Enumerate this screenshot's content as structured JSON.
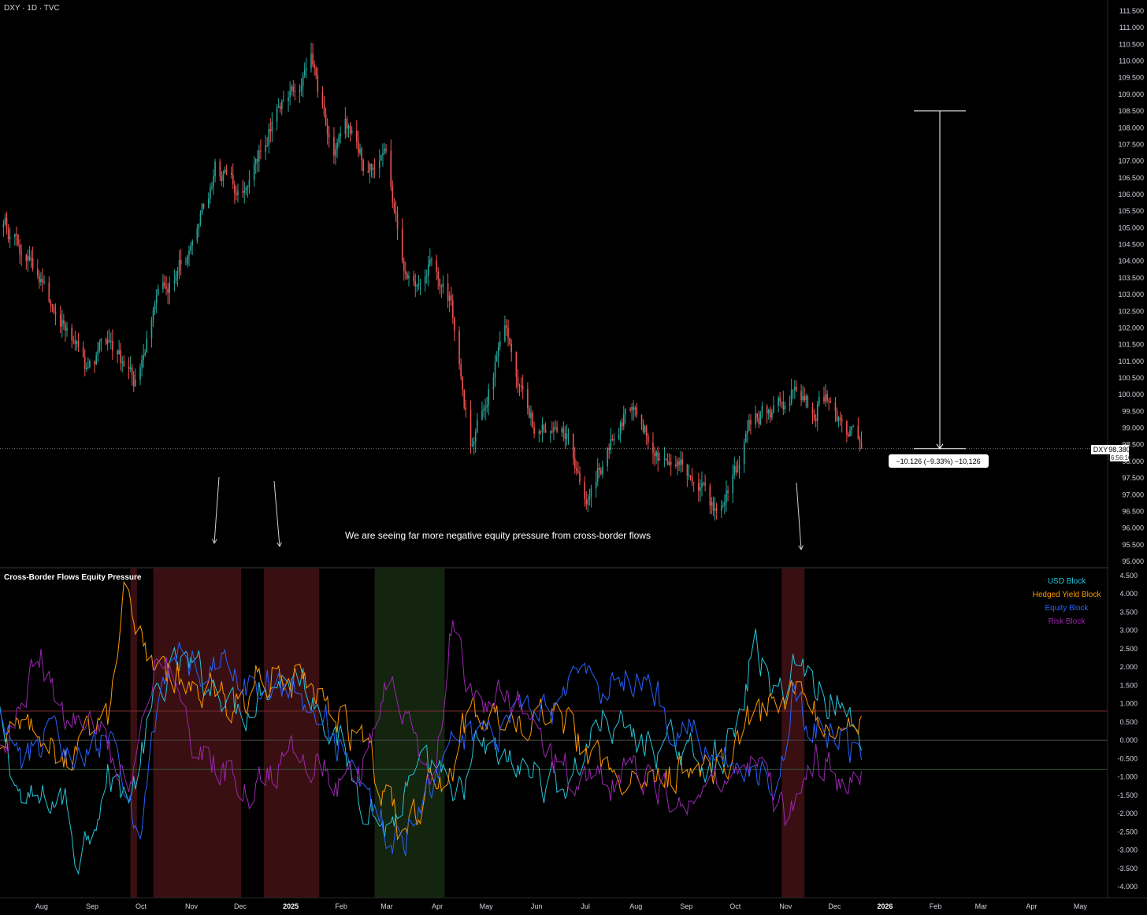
{
  "header": {
    "symbol_title": "DXY · 1D · TVC"
  },
  "main_pane": {
    "y_ticks": [
      "111.500",
      "111.000",
      "110.500",
      "110.000",
      "109.500",
      "109.000",
      "108.500",
      "108.000",
      "107.500",
      "107.000",
      "106.500",
      "106.000",
      "105.500",
      "105.000",
      "104.500",
      "104.000",
      "103.500",
      "103.000",
      "102.500",
      "102.000",
      "101.500",
      "101.000",
      "100.500",
      "100.000",
      "99.500",
      "99.000",
      "98.500",
      "98.000",
      "97.500",
      "97.000",
      "96.500",
      "96.000",
      "95.500",
      "95.000"
    ],
    "y_tick_values": [
      111.5,
      111.0,
      110.5,
      110.0,
      109.5,
      109.0,
      108.5,
      108.0,
      107.5,
      107.0,
      106.5,
      106.0,
      105.5,
      105.0,
      104.5,
      104.0,
      103.5,
      103.0,
      102.5,
      102.0,
      101.5,
      101.0,
      100.5,
      100.0,
      99.5,
      99.0,
      98.5,
      98.0,
      97.5,
      97.0,
      96.5,
      96.0,
      95.5,
      95.0
    ],
    "y_range": [
      95.0,
      111.5
    ],
    "price_label": {
      "symbol": "DXY",
      "price": "98.380",
      "countdown": "16:56:10",
      "value": 98.38
    },
    "measure": {
      "label": "−10.126 (−9.33%) −10,126",
      "from": 108.506,
      "to": 98.38
    },
    "annotation": "We are seeing far more negative equity pressure from cross-border flows",
    "up_color": "#26a69a",
    "down_color": "#ef5350"
  },
  "indicator_pane": {
    "title": "Cross-Border Flows Equity Pressure",
    "y_ticks": [
      "4.500",
      "4.000",
      "3.500",
      "3.000",
      "2.500",
      "2.000",
      "1.500",
      "1.000",
      "0.500",
      "0.000",
      "-0.500",
      "-1.000",
      "-1.500",
      "-2.000",
      "-2.500",
      "-3.000",
      "-3.500",
      "-4.000"
    ],
    "y_tick_values": [
      4.5,
      4.0,
      3.5,
      3.0,
      2.5,
      2.0,
      1.5,
      1.0,
      0.5,
      0.0,
      -0.5,
      -1.0,
      -1.5,
      -2.0,
      -2.5,
      -3.0,
      -3.5,
      -4.0
    ],
    "y_range": [
      -4.2,
      4.7
    ],
    "legend": [
      {
        "name": "USD Block",
        "color": "#26c6da"
      },
      {
        "name": "Hedged Yield Block",
        "color": "#ff9800"
      },
      {
        "name": "Equity Block",
        "color": "#2962ff"
      },
      {
        "name": "Risk Block",
        "color": "#9c27b0"
      }
    ],
    "threshold_levels": [
      0.8,
      0.0,
      -0.8
    ]
  },
  "x_axis": {
    "labels": [
      "Aug",
      "Sep",
      "Oct",
      "Nov",
      "Dec",
      "2025",
      "Feb",
      "Mar",
      "Apr",
      "May",
      "Jun",
      "Jul",
      "Aug",
      "Sep",
      "Oct",
      "Nov",
      "Dec",
      "2026",
      "Feb",
      "Mar",
      "Apr",
      "May"
    ],
    "bold": [
      "2025",
      "2026"
    ]
  },
  "chart_data": [
    {
      "type": "candlestick",
      "title": "DXY · 1D · TVC",
      "x_range": [
        "2024-07-01",
        "2025-12-31"
      ],
      "ylim": [
        95.0,
        111.5
      ],
      "keypoints": [
        [
          "2024-07-10",
          105.0
        ],
        [
          "2024-07-22",
          104.2
        ],
        [
          "2024-08-05",
          102.7
        ],
        [
          "2024-08-20",
          101.5
        ],
        [
          "2024-08-28",
          100.6
        ],
        [
          "2024-09-10",
          101.6
        ],
        [
          "2024-09-27",
          100.3
        ],
        [
          "2024-10-10",
          102.8
        ],
        [
          "2024-10-30",
          104.3
        ],
        [
          "2024-11-15",
          106.8
        ],
        [
          "2024-12-02",
          105.8
        ],
        [
          "2024-12-20",
          108.2
        ],
        [
          "2025-01-03",
          109.1
        ],
        [
          "2025-01-13",
          109.9
        ],
        [
          "2025-01-27",
          107.3
        ],
        [
          "2025-02-03",
          108.4
        ],
        [
          "2025-02-15",
          106.8
        ],
        [
          "2025-02-28",
          107.4
        ],
        [
          "2025-03-10",
          103.9
        ],
        [
          "2025-03-19",
          103.5
        ],
        [
          "2025-03-27",
          104.3
        ],
        [
          "2025-04-08",
          102.9
        ],
        [
          "2025-04-21",
          98.6
        ],
        [
          "2025-05-12",
          101.8
        ],
        [
          "2025-05-29",
          99.2
        ],
        [
          "2025-06-20",
          98.8
        ],
        [
          "2025-07-01",
          96.8
        ],
        [
          "2025-07-17",
          98.7
        ],
        [
          "2025-07-31",
          99.9
        ],
        [
          "2025-08-15",
          97.8
        ],
        [
          "2025-08-28",
          98.2
        ],
        [
          "2025-09-17",
          96.6
        ],
        [
          "2025-10-01",
          97.8
        ],
        [
          "2025-10-10",
          99.1
        ],
        [
          "2025-10-31",
          99.8
        ],
        [
          "2025-11-06",
          100.2
        ],
        [
          "2025-11-19",
          99.5
        ],
        [
          "2025-11-21",
          100.2
        ],
        [
          "2025-12-10",
          98.9
        ],
        [
          "2025-12-17",
          98.38
        ]
      ]
    },
    {
      "type": "line",
      "title": "Cross-Border Flows Equity Pressure",
      "x_range": [
        "2024-07-01",
        "2025-12-31"
      ],
      "ylim": [
        -4.2,
        4.7
      ],
      "shaded_regions": [
        {
          "from": "2024-09-24",
          "to": "2024-09-28",
          "kind": "negative"
        },
        {
          "from": "2024-10-08",
          "to": "2024-12-01",
          "kind": "negative"
        },
        {
          "from": "2024-12-15",
          "to": "2025-01-18",
          "kind": "negative"
        },
        {
          "from": "2025-02-21",
          "to": "2025-04-05",
          "kind": "positive"
        },
        {
          "from": "2025-10-29",
          "to": "2025-11-12",
          "kind": "negative"
        }
      ],
      "series": [
        {
          "name": "USD Block",
          "color": "#26c6da",
          "keypoints": [
            [
              "2024-07-01",
              1.3
            ],
            [
              "2024-07-20",
              -1.8
            ],
            [
              "2024-08-15",
              -1.6
            ],
            [
              "2024-08-22",
              -3.2
            ],
            [
              "2024-09-10",
              -1.0
            ],
            [
              "2024-09-25",
              -1.5
            ],
            [
              "2024-10-10",
              1.2
            ],
            [
              "2024-10-25",
              2.1
            ],
            [
              "2024-11-20",
              1.4
            ],
            [
              "2024-12-01",
              0.7
            ],
            [
              "2024-12-15",
              1.6
            ],
            [
              "2025-01-05",
              1.8
            ],
            [
              "2025-01-20",
              0.9
            ],
            [
              "2025-02-10",
              -1.2
            ],
            [
              "2025-03-01",
              -2.5
            ],
            [
              "2025-03-15",
              -1.3
            ],
            [
              "2025-04-01",
              -0.7
            ],
            [
              "2025-04-10",
              -2.0
            ],
            [
              "2025-04-25",
              -0.2
            ],
            [
              "2025-05-20",
              -0.8
            ],
            [
              "2025-06-20",
              -1.2
            ],
            [
              "2025-07-10",
              0.6
            ],
            [
              "2025-08-01",
              0.0
            ],
            [
              "2025-08-25",
              -0.3
            ],
            [
              "2025-09-20",
              -0.5
            ],
            [
              "2025-10-05",
              0.5
            ],
            [
              "2025-10-12",
              2.9
            ],
            [
              "2025-10-25",
              0.9
            ],
            [
              "2025-11-05",
              2.2
            ],
            [
              "2025-11-20",
              1.5
            ],
            [
              "2025-12-05",
              0.9
            ],
            [
              "2025-12-15",
              0.2
            ]
          ]
        },
        {
          "name": "Hedged Yield Block",
          "color": "#ff9800",
          "keypoints": [
            [
              "2024-07-01",
              -0.9
            ],
            [
              "2024-07-15",
              0.7
            ],
            [
              "2024-08-01",
              -0.3
            ],
            [
              "2024-08-20",
              -0.6
            ],
            [
              "2024-09-10",
              0.5
            ],
            [
              "2024-09-20",
              3.7
            ],
            [
              "2024-10-05",
              2.3
            ],
            [
              "2024-10-20",
              1.7
            ],
            [
              "2024-11-10",
              1.3
            ],
            [
              "2024-12-01",
              0.8
            ],
            [
              "2024-12-10",
              2.0
            ],
            [
              "2025-01-05",
              1.6
            ],
            [
              "2025-01-25",
              0.9
            ],
            [
              "2025-02-15",
              -0.2
            ],
            [
              "2025-03-01",
              -1.8
            ],
            [
              "2025-03-10",
              -2.6
            ],
            [
              "2025-03-25",
              -1.4
            ],
            [
              "2025-04-10",
              -0.6
            ],
            [
              "2025-04-20",
              0.7
            ],
            [
              "2025-05-20",
              0.5
            ],
            [
              "2025-06-20",
              0.3
            ],
            [
              "2025-07-10",
              -0.7
            ],
            [
              "2025-08-01",
              -0.9
            ],
            [
              "2025-08-25",
              -1.0
            ],
            [
              "2025-09-20",
              -0.8
            ],
            [
              "2025-10-10",
              0.6
            ],
            [
              "2025-10-25",
              0.9
            ],
            [
              "2025-11-05",
              1.5
            ],
            [
              "2025-11-20",
              0.6
            ],
            [
              "2025-12-05",
              -0.1
            ],
            [
              "2025-12-15",
              0.4
            ]
          ]
        },
        {
          "name": "Equity Block",
          "color": "#2962ff",
          "keypoints": [
            [
              "2024-07-01",
              1.5
            ],
            [
              "2024-07-20",
              -0.8
            ],
            [
              "2024-08-05",
              0.4
            ],
            [
              "2024-08-20",
              -0.6
            ],
            [
              "2024-09-10",
              0.3
            ],
            [
              "2024-09-30",
              -2.5
            ],
            [
              "2024-10-10",
              0.8
            ],
            [
              "2024-10-20",
              2.6
            ],
            [
              "2024-11-05",
              1.9
            ],
            [
              "2024-11-20",
              2.2
            ],
            [
              "2024-12-01",
              1.2
            ],
            [
              "2024-12-10",
              1.6
            ],
            [
              "2025-01-01",
              1.4
            ],
            [
              "2025-01-20",
              0.8
            ],
            [
              "2025-02-05",
              -0.5
            ],
            [
              "2025-02-20",
              -1.8
            ],
            [
              "2025-03-10",
              -2.9
            ],
            [
              "2025-03-20",
              -2.0
            ],
            [
              "2025-04-01",
              -0.8
            ],
            [
              "2025-04-15",
              0.2
            ],
            [
              "2025-05-10",
              0.3
            ],
            [
              "2025-06-10",
              0.9
            ],
            [
              "2025-07-01",
              1.6
            ],
            [
              "2025-07-25",
              1.8
            ],
            [
              "2025-08-10",
              1.4
            ],
            [
              "2025-08-25",
              0.4
            ],
            [
              "2025-09-10",
              0.0
            ],
            [
              "2025-09-25",
              -0.5
            ],
            [
              "2025-10-10",
              -0.8
            ],
            [
              "2025-10-25",
              -1.5
            ],
            [
              "2025-11-05",
              1.5
            ],
            [
              "2025-11-15",
              0.5
            ],
            [
              "2025-12-01",
              0.2
            ],
            [
              "2025-12-15",
              -0.4
            ]
          ]
        },
        {
          "name": "Risk Block",
          "color": "#9c27b0",
          "keypoints": [
            [
              "2024-07-01",
              -0.6
            ],
            [
              "2024-07-15",
              0.6
            ],
            [
              "2024-08-01",
              2.2
            ],
            [
              "2024-08-15",
              0.6
            ],
            [
              "2024-09-01",
              0.4
            ],
            [
              "2024-09-25",
              -1.5
            ],
            [
              "2024-10-10",
              2.0
            ],
            [
              "2024-10-25",
              1.2
            ],
            [
              "2024-11-05",
              -0.6
            ],
            [
              "2024-11-25",
              -0.8
            ],
            [
              "2024-12-10",
              -1.5
            ],
            [
              "2025-01-01",
              -0.3
            ],
            [
              "2025-01-20",
              -0.7
            ],
            [
              "2025-02-10",
              -1.4
            ],
            [
              "2025-02-28",
              1.7
            ],
            [
              "2025-03-15",
              0.2
            ],
            [
              "2025-03-30",
              -1.6
            ],
            [
              "2025-04-08",
              3.2
            ],
            [
              "2025-04-25",
              1.1
            ],
            [
              "2025-05-20",
              1.0
            ],
            [
              "2025-06-20",
              -0.9
            ],
            [
              "2025-07-10",
              -1.2
            ],
            [
              "2025-08-01",
              -1.0
            ],
            [
              "2025-08-25",
              -1.5
            ],
            [
              "2025-09-20",
              -1.3
            ],
            [
              "2025-10-10",
              -0.7
            ],
            [
              "2025-10-25",
              -1.8
            ],
            [
              "2025-11-01",
              -2.2
            ],
            [
              "2025-11-10",
              -1.2
            ],
            [
              "2025-11-20",
              -0.5
            ],
            [
              "2025-12-05",
              -1.1
            ],
            [
              "2025-12-15",
              -0.9
            ]
          ]
        }
      ]
    }
  ]
}
